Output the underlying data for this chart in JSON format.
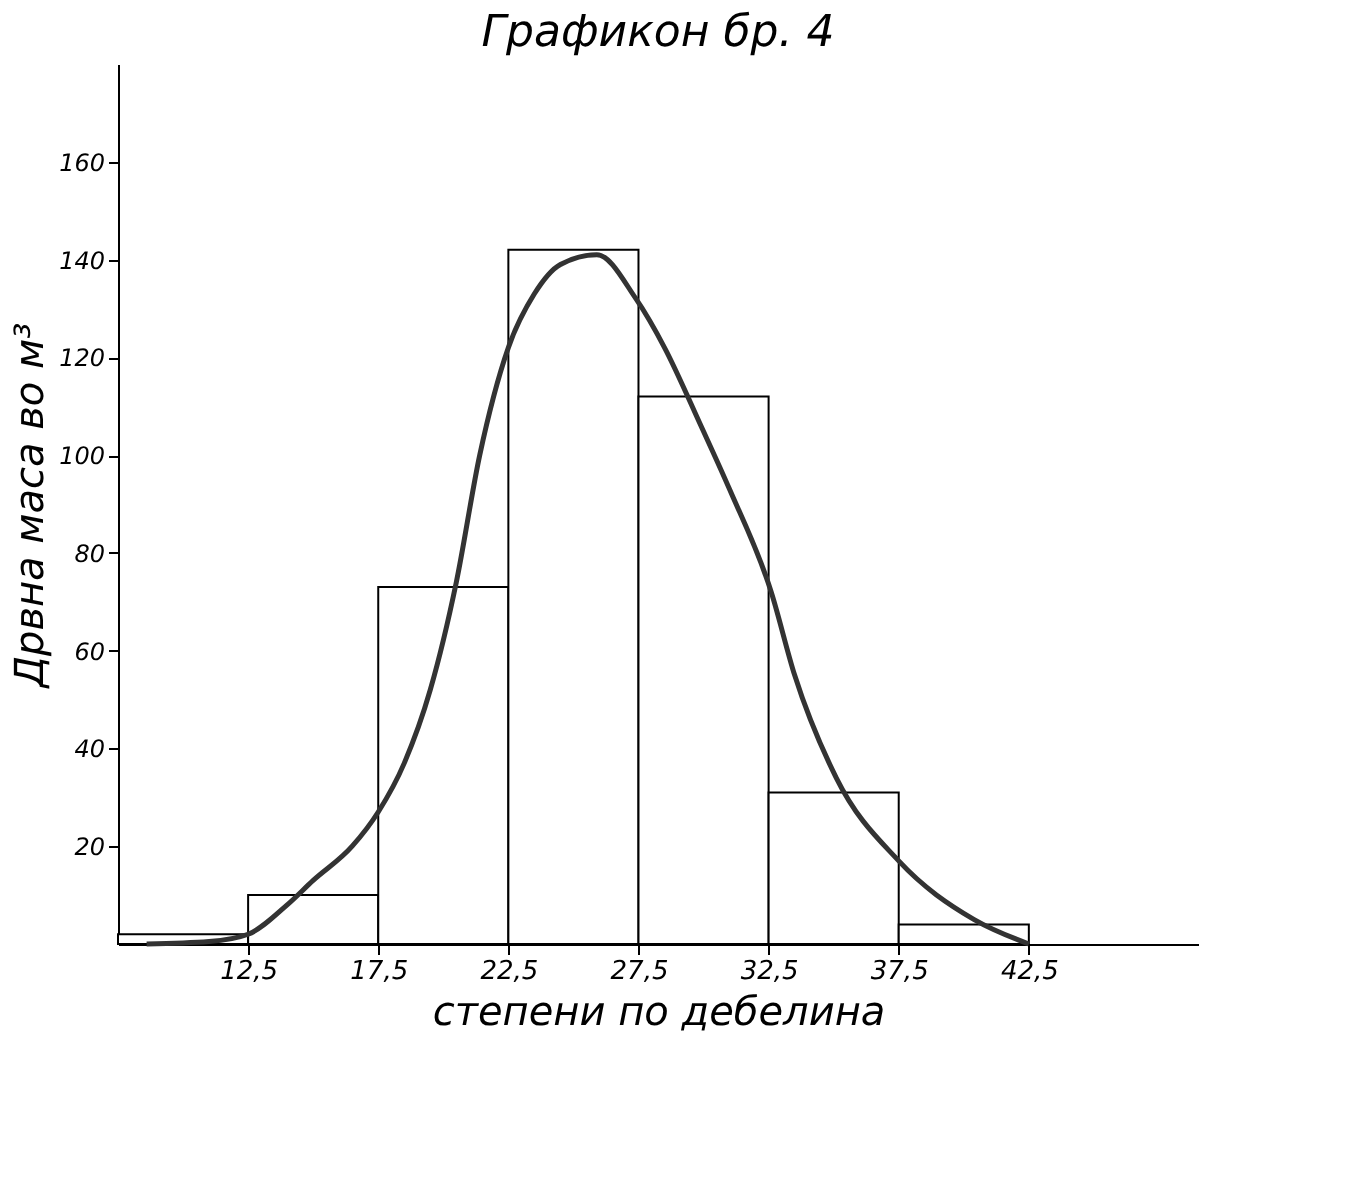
{
  "chart_data": {
    "type": "histogram",
    "title": "Графикон бр. 4",
    "xlabel": "степени по дебелина",
    "ylabel": "Дрвна маса во м³",
    "bins": [
      7.5,
      12.5,
      17.5,
      22.5,
      27.5,
      32.5,
      37.5,
      42.5
    ],
    "values": [
      2,
      10,
      73,
      142,
      112,
      31,
      4
    ],
    "color": "#ffffff",
    "series": [
      {
        "type": "line",
        "color": "#333333",
        "x": [
          8.6,
          11,
          12.5,
          14,
          15,
          16.5,
          17.5,
          18.5,
          19.5,
          20.5,
          21.4,
          22.5,
          23.5,
          24.5,
          25.9,
          27.4,
          28.5,
          29.9,
          31,
          32.6,
          33.5,
          35.1,
          37.5,
          40.4,
          42.5
        ],
        "values": [
          0,
          0.5,
          2,
          8,
          13,
          20,
          27,
          37,
          52,
          74,
          100,
          122,
          133,
          139,
          141,
          132,
          122,
          106,
          93,
          72,
          55,
          34,
          17,
          5,
          0
        ]
      }
    ],
    "xlim": [
      7.5,
      49
    ],
    "ylim": [
      0,
      180
    ],
    "xticks": [
      {
        "value": 12.5,
        "label": "12,5"
      },
      {
        "value": 17.5,
        "label": "17,5"
      },
      {
        "value": 22.5,
        "label": "22,5"
      },
      {
        "value": 27.5,
        "label": "27,5"
      },
      {
        "value": 32.5,
        "label": "32,5"
      },
      {
        "value": 37.5,
        "label": "37,5"
      },
      {
        "value": 42.5,
        "label": "42,5"
      }
    ],
    "yticks": [
      20,
      40,
      60,
      80,
      100,
      120,
      140,
      160
    ],
    "grid": false,
    "marker": "none",
    "line_style": "solid"
  }
}
